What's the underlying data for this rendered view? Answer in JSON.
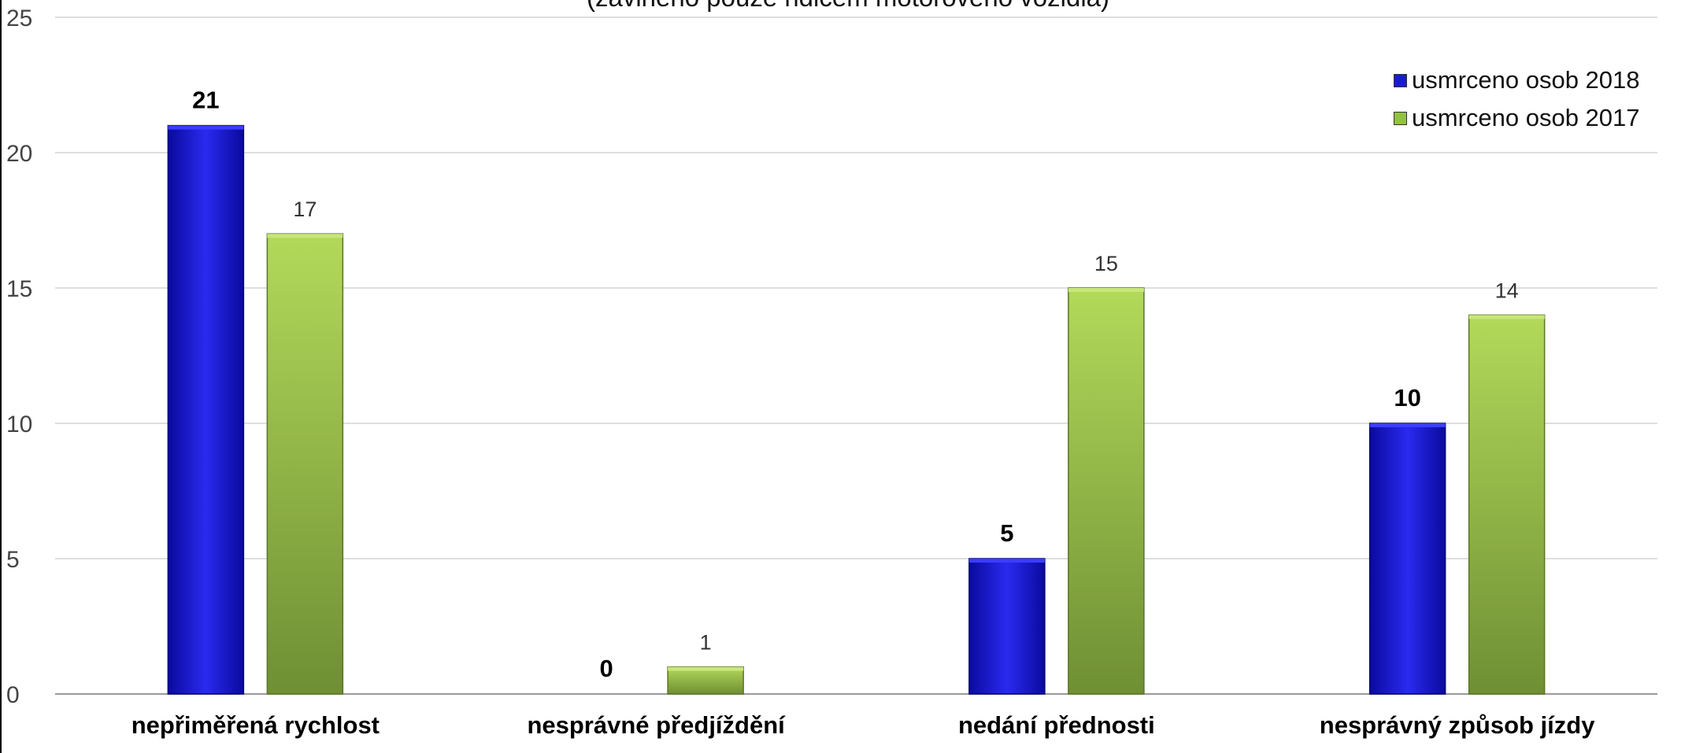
{
  "title": "(zaviněno pouze řidičem motorového vozidla)",
  "chart_data": {
    "type": "bar",
    "title": "(zaviněno pouze řidičem motorového vozidla)",
    "categories": [
      "nepřiměřená rychlost",
      "nesprávné předjíždění",
      "nedání přednosti",
      "nesprávný způsob jízdy"
    ],
    "series": [
      {
        "name": "usmrceno osob 2018",
        "values": [
          21,
          0,
          5,
          10
        ],
        "color": "#1a1ad4"
      },
      {
        "name": "usmrceno osob 2017",
        "values": [
          17,
          1,
          15,
          14
        ],
        "color": "#93c140"
      }
    ],
    "y_ticks": [
      "0",
      "5",
      "10",
      "15",
      "20",
      "25"
    ],
    "xlabel": "",
    "ylabel": "",
    "ylim": [
      0,
      25
    ],
    "grid": true,
    "legend_position": "top-right"
  }
}
